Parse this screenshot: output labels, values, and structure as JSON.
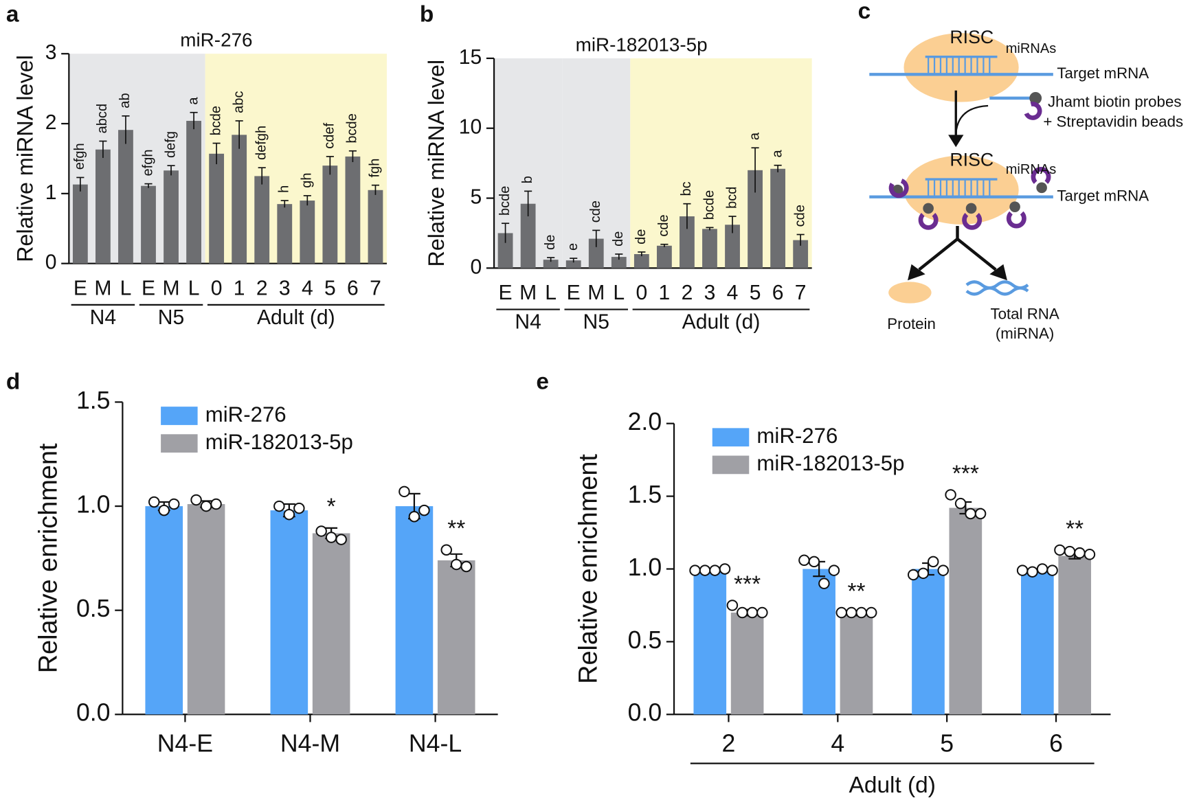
{
  "chart_data": [
    {
      "type": "grouped_bar",
      "panel": "a",
      "title": "miR-276",
      "ylabel": "Relative miRNA level",
      "ylim": [
        0,
        3
      ],
      "yticks": [
        0,
        1,
        2,
        3
      ],
      "color": "#6d6e71",
      "groups": [
        {
          "label": "N4",
          "shade": "#e6e7e9",
          "categories": [
            "E",
            "M",
            "L"
          ],
          "values": [
            1.13,
            1.63,
            1.91
          ],
          "errors": [
            0.1,
            0.12,
            0.2
          ],
          "letters": [
            "efgh",
            "abcd",
            "ab"
          ]
        },
        {
          "label": "N5",
          "shade": "#e6e7e9",
          "categories": [
            "E",
            "M",
            "L"
          ],
          "values": [
            1.11,
            1.33,
            2.04
          ],
          "errors": [
            0.03,
            0.07,
            0.12
          ],
          "letters": [
            "efgh",
            "defg",
            "a"
          ]
        },
        {
          "label": "Adult (d)",
          "shade": "#fbf7cd",
          "categories": [
            "0",
            "1",
            "2",
            "3",
            "4",
            "5",
            "6",
            "7"
          ],
          "values": [
            1.57,
            1.84,
            1.25,
            0.85,
            0.9,
            1.4,
            1.53,
            1.05
          ],
          "errors": [
            0.15,
            0.2,
            0.12,
            0.05,
            0.07,
            0.13,
            0.08,
            0.07
          ],
          "letters": [
            "bcde",
            "abc",
            "defgh",
            "h",
            "gh",
            "cdef",
            "bcde",
            "fgh"
          ]
        }
      ]
    },
    {
      "type": "grouped_bar",
      "panel": "b",
      "title": "miR-182013-5p",
      "ylabel": "Relative miRNA level",
      "ylim": [
        0,
        15
      ],
      "yticks": [
        0,
        5,
        10,
        15
      ],
      "color": "#6d6e71",
      "groups": [
        {
          "label": "N4",
          "shade": "#e6e7e9",
          "categories": [
            "E",
            "M",
            "L"
          ],
          "values": [
            2.5,
            4.6,
            0.6
          ],
          "errors": [
            0.7,
            0.9,
            0.15
          ],
          "letters": [
            "bcde",
            "b",
            "de"
          ]
        },
        {
          "label": "N5",
          "shade": "#e6e7e9",
          "categories": [
            "E",
            "M",
            "L"
          ],
          "values": [
            0.55,
            2.1,
            0.8
          ],
          "errors": [
            0.15,
            0.6,
            0.2
          ],
          "letters": [
            "e",
            "cde",
            "de"
          ]
        },
        {
          "label": "Adult (d)",
          "shade": "#fbf7cd",
          "categories": [
            "0",
            "1",
            "2",
            "3",
            "4",
            "5",
            "6",
            "7"
          ],
          "values": [
            1.0,
            1.6,
            3.7,
            2.8,
            3.1,
            7.0,
            7.1,
            2.0
          ],
          "errors": [
            0.15,
            0.1,
            0.9,
            0.1,
            0.6,
            1.6,
            0.25,
            0.4
          ],
          "letters": [
            "de",
            "cde",
            "bc",
            "bcde",
            "bcd",
            "a",
            "a",
            "cde"
          ]
        }
      ]
    },
    {
      "type": "bar",
      "panel": "d",
      "ylabel": "Relative enrichment",
      "ylim": [
        0,
        1.5
      ],
      "yticks": [
        {
          "value": 0,
          "label": "0.0"
        },
        0.5,
        {
          "value": 1,
          "label": "1.0"
        },
        1.5
      ],
      "categories": [
        "N4-E",
        "N4-M",
        "N4-L"
      ],
      "series": [
        {
          "name": "miR-276",
          "color": "#55a5f8",
          "values": [
            1.0,
            0.98,
            1.0
          ],
          "errors": [
            0.02,
            0.03,
            0.06
          ],
          "points": [
            [
              1.02,
              0.98,
              1.01
            ],
            [
              1.0,
              0.96,
              0.99
            ],
            [
              1.07,
              0.95,
              0.98
            ]
          ]
        },
        {
          "name": "miR-182013-5p",
          "color": "#a0a0a5",
          "values": [
            1.01,
            0.87,
            0.74
          ],
          "errors": [
            0.015,
            0.025,
            0.03
          ],
          "points": [
            [
              1.03,
              1.0,
              1.01
            ],
            [
              0.88,
              0.85,
              0.84
            ],
            [
              0.79,
              0.72,
              0.71
            ]
          ]
        }
      ],
      "annotations": [
        null,
        "*",
        "**"
      ]
    },
    {
      "type": "bar",
      "panel": "e",
      "ylabel": "Relative enrichment",
      "xlabel": "Adult (d)",
      "ylim": [
        0,
        2
      ],
      "yticks": [
        {
          "value": 0,
          "label": "0.0"
        },
        0.5,
        {
          "value": 1,
          "label": "1.0"
        },
        1.5,
        {
          "value": 2,
          "label": "2.0"
        }
      ],
      "categories": [
        "2",
        "4",
        "5",
        "6"
      ],
      "series": [
        {
          "name": "miR-276",
          "color": "#55a5f8",
          "values": [
            0.99,
            1.0,
            1.0,
            0.99
          ],
          "errors": [
            0.01,
            0.05,
            0.04,
            0.01
          ],
          "points": [
            [
              0.99,
              0.99,
              0.99,
              1.0
            ],
            [
              1.06,
              1.05,
              0.9,
              0.99
            ],
            [
              0.96,
              0.97,
              1.05,
              0.99
            ],
            [
              0.99,
              0.98,
              1.0,
              0.99
            ]
          ]
        },
        {
          "name": "miR-182013-5p",
          "color": "#a0a0a5",
          "values": [
            0.7,
            0.69,
            1.42,
            1.09
          ],
          "errors": [
            0.02,
            0.01,
            0.04,
            0.02
          ],
          "points": [
            [
              0.75,
              0.7,
              0.7,
              0.7
            ],
            [
              0.7,
              0.7,
              0.7,
              0.7
            ],
            [
              1.51,
              1.45,
              1.38,
              1.38
            ],
            [
              1.13,
              1.12,
              1.11,
              1.1
            ]
          ]
        }
      ],
      "annotations": [
        "***",
        "**",
        "***",
        "**"
      ]
    }
  ],
  "diagram": {
    "panel": "c",
    "labels": [
      "RISC",
      "miRNAs",
      "Target mRNA",
      "Jhamt biotin probes",
      "+ Streptavidin beads",
      "RISC",
      "miRNAs",
      "Target mRNA",
      "Protein",
      "Total RNA",
      "(miRNA)"
    ]
  }
}
